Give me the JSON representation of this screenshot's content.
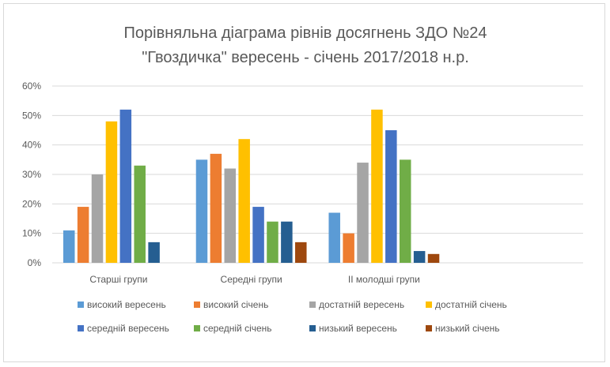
{
  "colors": {
    "text": "#595959",
    "grid": "#d9d9d9",
    "frame_border": "#d9d9d9"
  },
  "chart_data": {
    "type": "bar",
    "title": "Порівняльна діаграма рівнів досягнень ЗДО №24",
    "subtitle": "\"Гвоздичка\" вересень - січень 2017/2018 н.р.",
    "xlabel": "",
    "ylabel": "",
    "ylim": [
      0,
      0.6
    ],
    "y_ticks": [
      "0%",
      "10%",
      "20%",
      "30%",
      "40%",
      "50%",
      "60%"
    ],
    "grid": true,
    "legend_position": "bottom",
    "categories": [
      "Старші групи",
      "Середні групи",
      "ІІ молодші групи",
      ""
    ],
    "series": [
      {
        "name": "високий вересень",
        "color": "#5b9bd5",
        "values": [
          0.11,
          0.35,
          0.17,
          null
        ]
      },
      {
        "name": "високий січень",
        "color": "#ed7d31",
        "values": [
          0.19,
          0.37,
          0.1,
          null
        ]
      },
      {
        "name": "достатній вересень",
        "color": "#a5a5a5",
        "values": [
          0.3,
          0.32,
          0.34,
          null
        ]
      },
      {
        "name": "достатній січень",
        "color": "#ffc000",
        "values": [
          0.48,
          0.42,
          0.52,
          null
        ]
      },
      {
        "name": "середній вересень",
        "color": "#4472c4",
        "values": [
          0.52,
          0.19,
          0.45,
          null
        ]
      },
      {
        "name": "середній січень",
        "color": "#70ad47",
        "values": [
          0.33,
          0.14,
          0.35,
          null
        ]
      },
      {
        "name": "низький вересень",
        "color": "#255e91",
        "values": [
          0.07,
          0.14,
          0.04,
          null
        ]
      },
      {
        "name": "низький січень",
        "color": "#9e480e",
        "values": [
          0.0,
          0.07,
          0.03,
          null
        ]
      }
    ]
  }
}
